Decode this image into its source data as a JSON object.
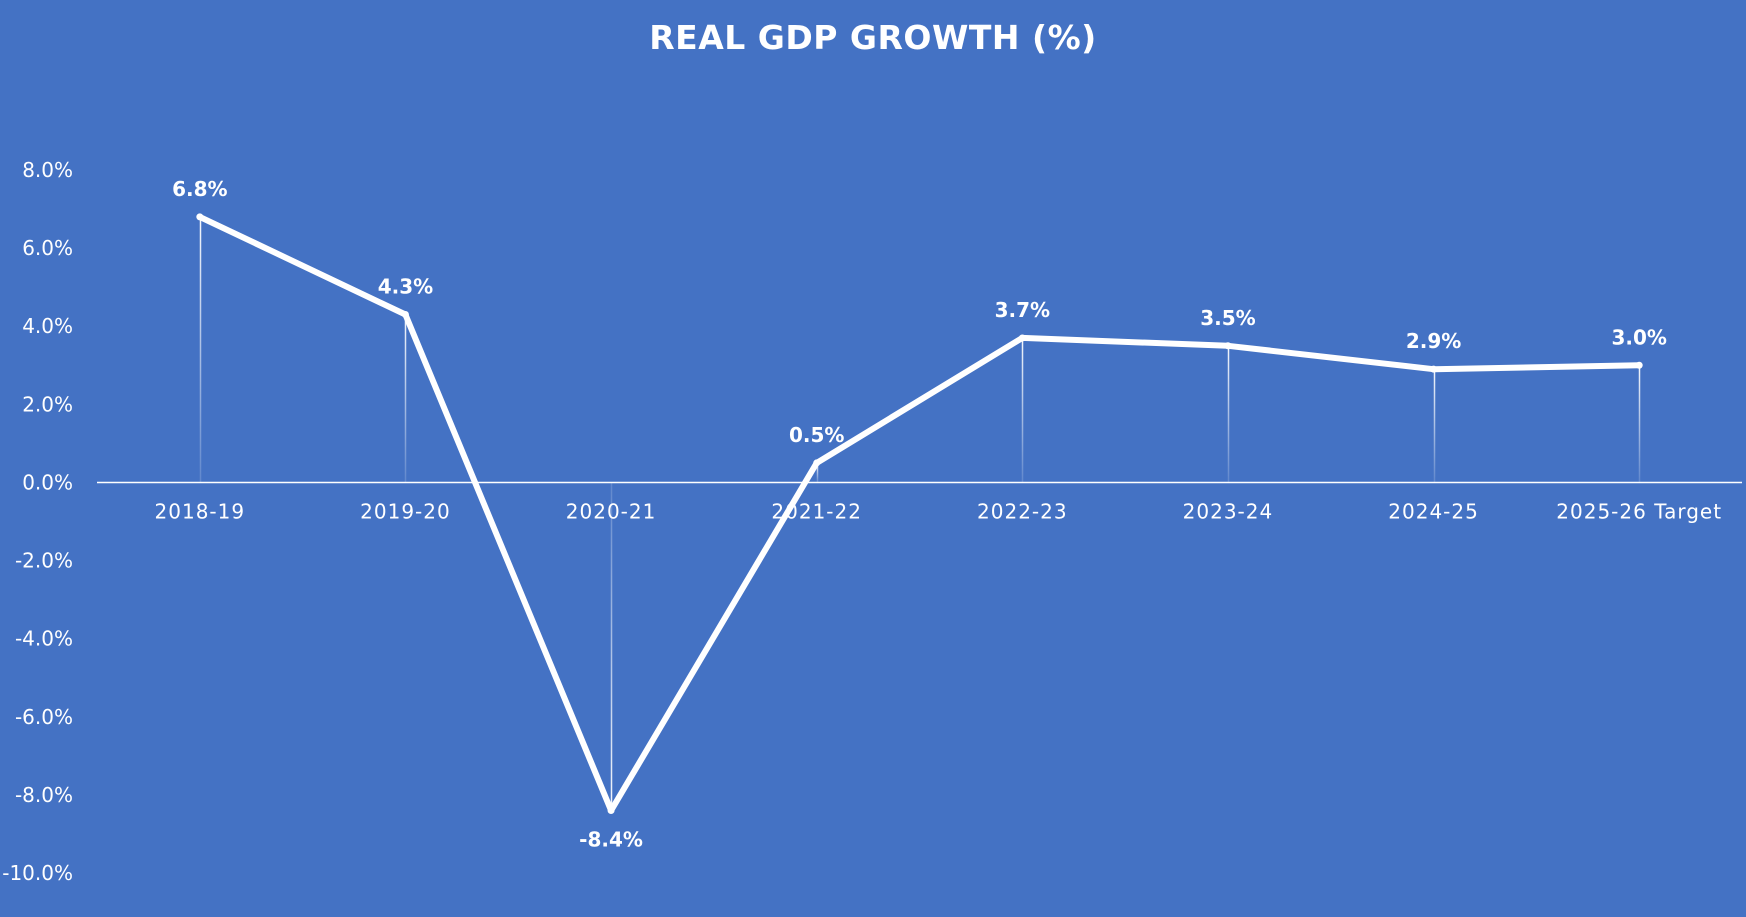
{
  "chart_data": {
    "type": "line",
    "title": "REAL GDP GROWTH (%)",
    "categories": [
      "2018-19",
      "2019-20",
      "2020-21",
      "2021-22",
      "2022-23",
      "2023-24",
      "2024-25",
      "2025-26 Target"
    ],
    "series": [
      {
        "values": [
          6.8,
          4.3,
          -8.4,
          0.5,
          3.7,
          3.5,
          2.9,
          3.0
        ],
        "data_labels": [
          "6.8%",
          "4.3%",
          "-8.4%",
          "0.5%",
          "3.7%",
          "3.5%",
          "2.9%",
          "3.0%"
        ]
      }
    ],
    "ylim": [
      -10,
      8
    ],
    "y_ticks": [
      8,
      6,
      4,
      2,
      0,
      -2,
      -4,
      -6,
      -8,
      -10
    ],
    "y_tick_labels": [
      "8.0%",
      "6.0%",
      "4.0%",
      "2.0%",
      "0.0%",
      "-2.0%",
      "-4.0%",
      "-6.0%",
      "-8.0%",
      "-10.0%"
    ],
    "xlabel": "",
    "ylabel": "",
    "grid": false,
    "drop_lines": true,
    "legend": "none",
    "colors": {
      "background": "#4472c4",
      "line": "#ffffff",
      "text": "#ffffff"
    }
  }
}
